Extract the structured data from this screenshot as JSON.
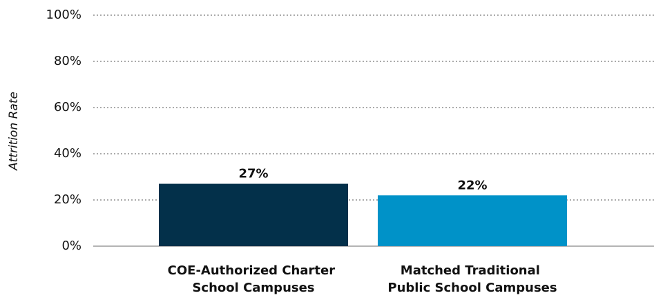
{
  "chart_data": {
    "type": "bar",
    "y_label": "Attrition Rate",
    "categories": [
      "COE-Authorized Charter School Campuses",
      "Matched Traditional Public School Campuses"
    ],
    "series": [
      {
        "colors": [
          "#03304a",
          "#0092c8"
        ],
        "values": [
          27,
          22
        ],
        "value_labels": [
          "27%",
          "22%"
        ]
      }
    ],
    "ylim": [
      0,
      100
    ],
    "yticks": [
      {
        "value": 0,
        "label": "0%"
      },
      {
        "value": 20,
        "label": "20%"
      },
      {
        "value": 40,
        "label": "40%"
      },
      {
        "value": 60,
        "label": "60%"
      },
      {
        "value": 80,
        "label": "80%"
      },
      {
        "value": 100,
        "label": "100%"
      }
    ],
    "grid": true
  }
}
